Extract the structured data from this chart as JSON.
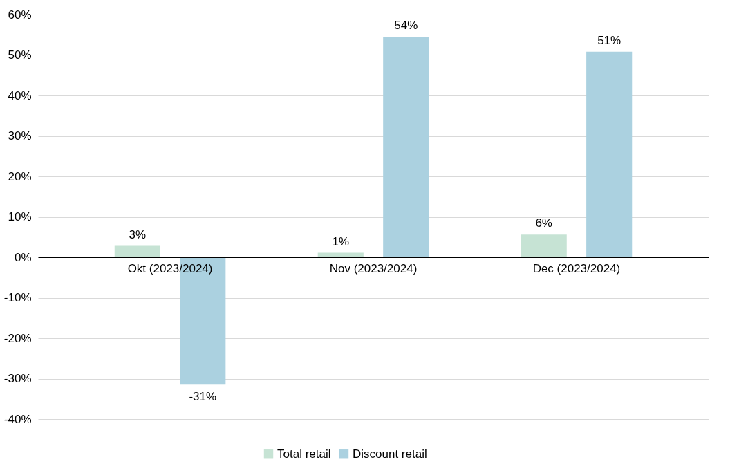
{
  "chart_data": {
    "type": "bar",
    "categories": [
      "Okt (2023/2024)",
      "Nov (2023/2024)",
      "Dec (2023/2024)"
    ],
    "series": [
      {
        "name": "Total retail",
        "color": "#c6e3d4",
        "values": [
          2.8,
          1.1,
          5.6
        ],
        "value_labels": [
          "3%",
          "1%",
          "6%"
        ]
      },
      {
        "name": "Discount retail",
        "color": "#abd1e0",
        "values": [
          -31.5,
          54.5,
          50.8
        ],
        "value_labels": [
          "-31%",
          "54%",
          "51%"
        ]
      }
    ],
    "ylim": [
      -40,
      60
    ],
    "yticks": [
      {
        "value": -40,
        "label": "-40%"
      },
      {
        "value": -30,
        "label": "-30%"
      },
      {
        "value": -20,
        "label": "-20%"
      },
      {
        "value": -10,
        "label": "-10%"
      },
      {
        "value": 0,
        "label": "0%"
      },
      {
        "value": 10,
        "label": "10%"
      },
      {
        "value": 20,
        "label": "20%"
      },
      {
        "value": 30,
        "label": "30%"
      },
      {
        "value": 40,
        "label": "40%"
      },
      {
        "value": 50,
        "label": "50%"
      },
      {
        "value": 60,
        "label": "60%"
      }
    ],
    "grid": "y",
    "legend": "bottom"
  }
}
